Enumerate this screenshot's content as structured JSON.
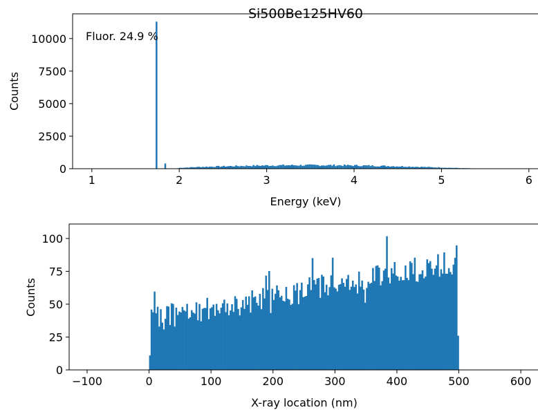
{
  "figure_title": "Si500Be125HV60",
  "annotation": "Fluor. 24.9 %",
  "colors": {
    "bar": "#1f77b4",
    "axis": "#000000"
  },
  "chart_data": [
    {
      "type": "bar",
      "subtype": "histogram",
      "xlabel": "Energy (keV)",
      "ylabel": "Counts",
      "xlim": [
        0.78,
        6.12
      ],
      "ylim": [
        0,
        11900
      ],
      "xticks": [
        1,
        2,
        3,
        4,
        5,
        6
      ],
      "yticks": [
        0,
        2500,
        5000,
        7500,
        10000
      ],
      "bin_width": 0.02,
      "peaks": [
        {
          "x": 1.74,
          "y": 11300
        },
        {
          "x": 1.84,
          "y": 400
        }
      ],
      "continuum": {
        "x": [
          1.98,
          2.0,
          2.1,
          2.2,
          2.4,
          2.6,
          2.8,
          3.0,
          3.2,
          3.4,
          3.6,
          3.8,
          4.0,
          4.2,
          4.4,
          4.6,
          4.8,
          5.0,
          5.2,
          5.4,
          5.46
        ],
        "y": [
          40,
          70,
          100,
          130,
          170,
          200,
          230,
          250,
          265,
          270,
          270,
          265,
          250,
          230,
          205,
          170,
          130,
          90,
          50,
          15,
          5
        ]
      }
    },
    {
      "type": "bar",
      "subtype": "histogram",
      "xlabel": "X-ray location (nm)",
      "ylabel": "Counts",
      "xlim": [
        -129,
        630
      ],
      "ylim": [
        0,
        111
      ],
      "xticks": [
        -100,
        0,
        100,
        200,
        300,
        400,
        500,
        600
      ],
      "yticks": [
        0,
        25,
        50,
        75,
        100
      ],
      "bin_width": 2.5,
      "x_start": 0,
      "x_end": 500,
      "edges": [
        {
          "x": 0,
          "y": 11
        },
        {
          "x": 500,
          "y": 26
        }
      ],
      "trend": {
        "x": [
          0,
          500
        ],
        "y": [
          38,
          82
        ]
      },
      "spread": 10,
      "max": 106
    }
  ]
}
